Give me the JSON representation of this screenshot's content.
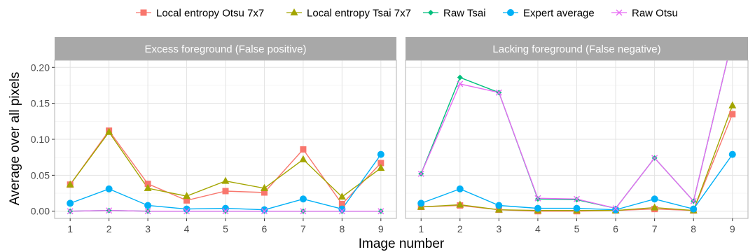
{
  "chart_data": {
    "type": "line",
    "xlabel": "Image number",
    "ylabel": "Average over all pixels",
    "x": [
      1,
      2,
      3,
      4,
      5,
      6,
      7,
      8,
      9
    ],
    "ylim": [
      -0.01,
      0.21
    ],
    "yticks": [
      0.0,
      0.05,
      0.1,
      0.15,
      0.2
    ],
    "ytick_labels": [
      "0.00",
      "0.05",
      "0.10",
      "0.15",
      "0.20"
    ],
    "grid": true,
    "legend_position": "top",
    "legend": [
      {
        "name": "Local entropy Otsu 7x7",
        "color": "#F8766D",
        "marker": "square"
      },
      {
        "name": "Local entropy Tsai 7x7",
        "color": "#A3A500",
        "marker": "triangle"
      },
      {
        "name": "Raw Tsai",
        "color": "#00BF7D",
        "marker": "diamond"
      },
      {
        "name": "Expert average",
        "color": "#00B0F6",
        "marker": "circle"
      },
      {
        "name": "Raw Otsu",
        "color": "#E76BF3",
        "marker": "cross"
      }
    ],
    "panels": [
      {
        "title": "Excess foreground (False positive)",
        "series": [
          {
            "name": "Local entropy Otsu 7x7",
            "values": [
              0.037,
              0.112,
              0.038,
              0.015,
              0.028,
              0.026,
              0.086,
              0.01,
              0.067
            ]
          },
          {
            "name": "Local entropy Tsai 7x7",
            "values": [
              0.037,
              0.11,
              0.032,
              0.021,
              0.042,
              0.032,
              0.072,
              0.02,
              0.06
            ]
          },
          {
            "name": "Raw Tsai",
            "values": [
              0.0,
              0.001,
              0.0,
              0.0,
              0.0,
              0.0,
              0.0,
              0.0,
              0.0
            ]
          },
          {
            "name": "Expert average",
            "values": [
              0.011,
              0.031,
              0.008,
              0.003,
              0.004,
              0.002,
              0.017,
              0.003,
              0.079
            ]
          },
          {
            "name": "Raw Otsu",
            "values": [
              0.0,
              0.001,
              0.0,
              0.0,
              0.0,
              0.0,
              0.0,
              0.0,
              0.0
            ]
          }
        ]
      },
      {
        "title": "Lacking foreground (False negative)",
        "series": [
          {
            "name": "Local entropy Otsu 7x7",
            "values": [
              0.006,
              0.008,
              0.002,
              0.0,
              0.0,
              0.001,
              0.003,
              0.001,
              0.135
            ]
          },
          {
            "name": "Local entropy Tsai 7x7",
            "values": [
              0.006,
              0.009,
              0.002,
              0.001,
              0.001,
              0.001,
              0.005,
              0.001,
              0.147
            ]
          },
          {
            "name": "Raw Tsai",
            "values": [
              0.052,
              0.186,
              0.165,
              0.017,
              0.016,
              0.004,
              0.074,
              0.014,
              0.24
            ]
          },
          {
            "name": "Expert average",
            "values": [
              0.011,
              0.031,
              0.008,
              0.004,
              0.004,
              0.002,
              0.017,
              0.003,
              0.079
            ]
          },
          {
            "name": "Raw Otsu",
            "values": [
              0.052,
              0.177,
              0.165,
              0.018,
              0.017,
              0.004,
              0.074,
              0.014,
              0.24
            ]
          }
        ]
      }
    ]
  }
}
